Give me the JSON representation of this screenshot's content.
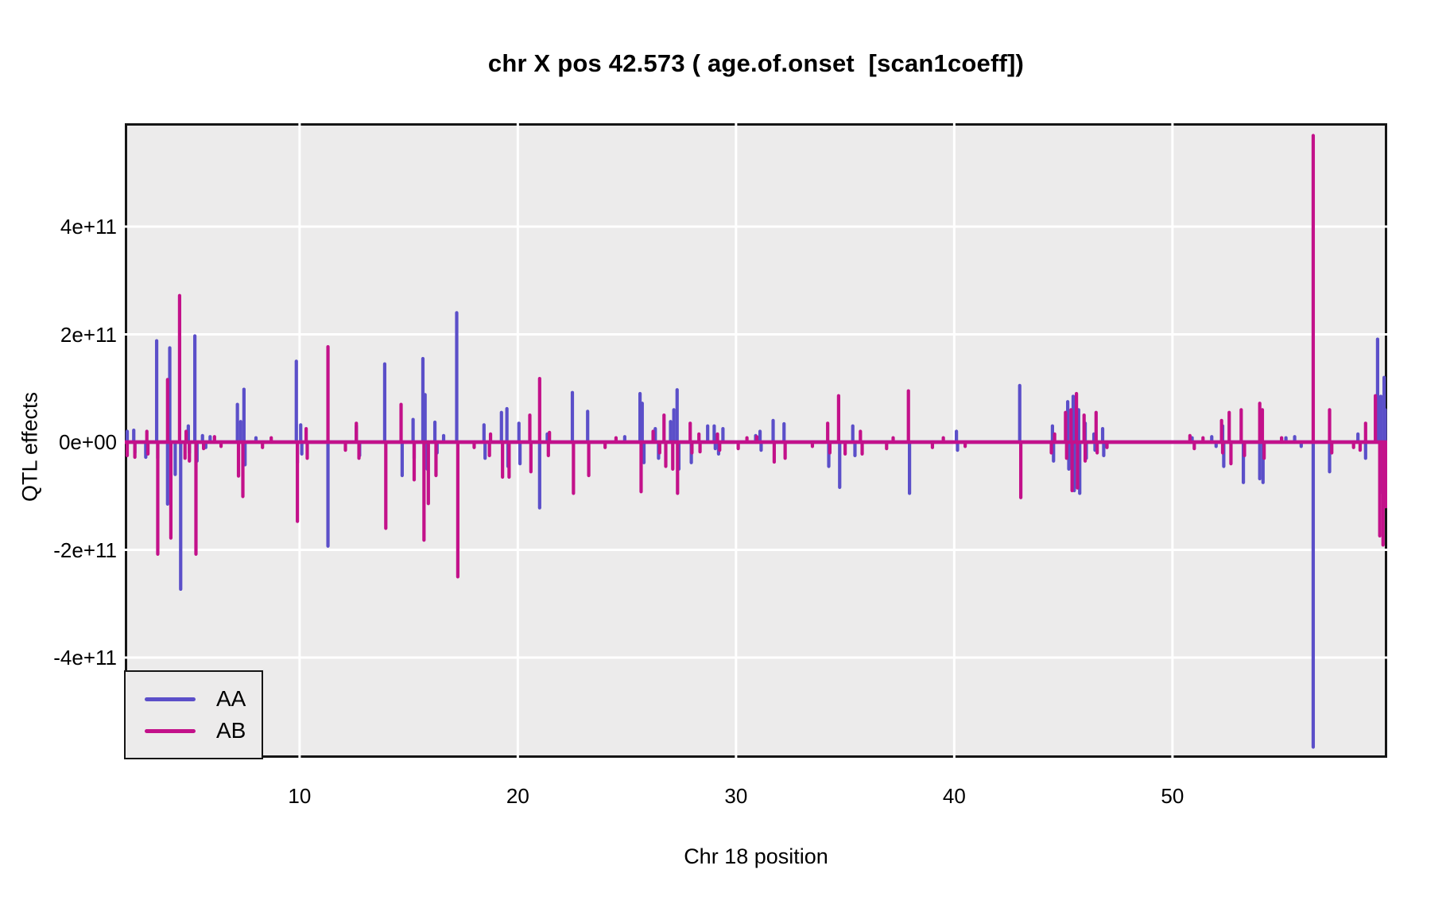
{
  "title": "chr X pos 42.573 ( age.of.onset  [scan1coeff])",
  "chart_data": {
    "type": "line",
    "title": "chr X pos 42.573 ( age.of.onset  [scan1coeff])",
    "xlabel": "Chr 18 position",
    "ylabel": "QTL effects",
    "x_ticks": {
      "values": [
        10,
        20,
        30,
        40,
        50
      ],
      "labels": [
        "10",
        "20",
        "30",
        "40",
        "50"
      ]
    },
    "y_ticks": {
      "values_e11": [
        4,
        2,
        0,
        -2,
        -4
      ],
      "labels": [
        "4e+11",
        "2e+11",
        "0e+00",
        "-2e+11",
        "-4e+11"
      ]
    },
    "xlim": [
      1.99,
      59.82
    ],
    "ylim": [
      -590000000000.0,
      590000000000.0
    ],
    "grid": "white major gridlines on gray panel, no tick marks",
    "panel_bg": "#ECEBEB",
    "gridline_color": "#FFFFFF",
    "border_color": "#151515",
    "baseline_value": 0,
    "units_note": "spike values below are in units of 1e11; each entry is [x_position, peak_value] of a narrow vertical spike rising/falling from the zero baseline",
    "legend": {
      "position": "bottom-left",
      "entries": [
        {
          "label": "AA",
          "color": "#5B4FC9"
        },
        {
          "label": "AB",
          "color": "#C3118A"
        }
      ]
    },
    "series": [
      {
        "name": "AA",
        "color": "#5B4FC9",
        "spikes_e11": [
          [
            2.1,
            0.2
          ],
          [
            2.4,
            0.22
          ],
          [
            2.45,
            -0.2
          ],
          [
            2.95,
            -0.28
          ],
          [
            3.45,
            1.88
          ],
          [
            3.5,
            -0.3
          ],
          [
            3.95,
            -1.15
          ],
          [
            4.05,
            1.75
          ],
          [
            4.3,
            -0.6
          ],
          [
            4.55,
            -2.73
          ],
          [
            4.9,
            0.3
          ],
          [
            4.95,
            -0.2
          ],
          [
            5.2,
            1.97
          ],
          [
            5.3,
            -0.35
          ],
          [
            5.55,
            0.12
          ],
          [
            5.7,
            -0.1
          ],
          [
            5.9,
            0.1
          ],
          [
            7.15,
            0.7
          ],
          [
            7.3,
            0.38
          ],
          [
            7.45,
            0.98
          ],
          [
            7.5,
            -0.42
          ],
          [
            8.0,
            0.08
          ],
          [
            9.85,
            1.5
          ],
          [
            9.9,
            -0.38
          ],
          [
            10.05,
            0.32
          ],
          [
            10.1,
            -0.22
          ],
          [
            11.3,
            -1.93
          ],
          [
            12.6,
            0.3
          ],
          [
            12.75,
            -0.25
          ],
          [
            13.9,
            1.45
          ],
          [
            14.7,
            -0.62
          ],
          [
            15.2,
            0.42
          ],
          [
            15.25,
            -0.3
          ],
          [
            15.65,
            1.55
          ],
          [
            15.75,
            0.88
          ],
          [
            15.85,
            -0.5
          ],
          [
            16.2,
            0.37
          ],
          [
            16.3,
            -0.2
          ],
          [
            16.6,
            0.12
          ],
          [
            17.2,
            2.4
          ],
          [
            18.45,
            0.32
          ],
          [
            18.5,
            -0.3
          ],
          [
            19.25,
            0.55
          ],
          [
            19.5,
            0.62
          ],
          [
            19.55,
            -0.45
          ],
          [
            20.05,
            0.35
          ],
          [
            20.1,
            -0.4
          ],
          [
            21.0,
            -1.22
          ],
          [
            21.35,
            0.15
          ],
          [
            22.5,
            0.92
          ],
          [
            23.2,
            0.57
          ],
          [
            24.9,
            0.1
          ],
          [
            25.6,
            0.9
          ],
          [
            25.7,
            0.72
          ],
          [
            25.78,
            -0.38
          ],
          [
            26.3,
            0.25
          ],
          [
            26.45,
            -0.3
          ],
          [
            27.0,
            0.38
          ],
          [
            27.15,
            0.6
          ],
          [
            27.3,
            0.97
          ],
          [
            27.38,
            -0.5
          ],
          [
            27.95,
            -0.38
          ],
          [
            28.7,
            0.3
          ],
          [
            29.0,
            0.3
          ],
          [
            29.05,
            -0.12
          ],
          [
            29.2,
            -0.22
          ],
          [
            29.4,
            0.25
          ],
          [
            30.9,
            0.12
          ],
          [
            31.1,
            0.2
          ],
          [
            31.15,
            -0.15
          ],
          [
            31.7,
            0.4
          ],
          [
            32.2,
            0.34
          ],
          [
            34.25,
            -0.45
          ],
          [
            34.75,
            -0.84
          ],
          [
            35.35,
            0.3
          ],
          [
            35.45,
            -0.25
          ],
          [
            37.95,
            -0.95
          ],
          [
            40.1,
            0.2
          ],
          [
            40.15,
            -0.15
          ],
          [
            43.0,
            1.05
          ],
          [
            44.5,
            0.3
          ],
          [
            44.55,
            -0.35
          ],
          [
            45.2,
            0.75
          ],
          [
            45.25,
            -0.5
          ],
          [
            45.45,
            0.85
          ],
          [
            45.5,
            -0.9
          ],
          [
            45.7,
            0.6
          ],
          [
            45.75,
            -0.95
          ],
          [
            46.0,
            0.35
          ],
          [
            46.05,
            -0.3
          ],
          [
            46.4,
            0.15
          ],
          [
            46.45,
            -0.15
          ],
          [
            46.8,
            0.25
          ],
          [
            46.85,
            -0.25
          ],
          [
            50.9,
            0.08
          ],
          [
            51.8,
            0.1
          ],
          [
            52.0,
            -0.08
          ],
          [
            52.3,
            0.3
          ],
          [
            52.35,
            -0.45
          ],
          [
            53.25,
            -0.75
          ],
          [
            54.0,
            -0.68
          ],
          [
            54.05,
            0.3
          ],
          [
            54.15,
            -0.75
          ],
          [
            55.2,
            0.08
          ],
          [
            55.6,
            0.1
          ],
          [
            55.9,
            -0.08
          ],
          [
            56.45,
            -5.66
          ],
          [
            57.2,
            -0.55
          ],
          [
            58.5,
            0.15
          ],
          [
            58.85,
            -0.3
          ],
          [
            59.4,
            1.91
          ],
          [
            59.55,
            0.85
          ],
          [
            59.6,
            -0.93
          ],
          [
            59.7,
            1.2
          ],
          [
            59.75,
            0.6
          ]
        ]
      },
      {
        "name": "AB",
        "color": "#C3118A",
        "spikes_e11": [
          [
            2.1,
            -0.25
          ],
          [
            2.45,
            -0.28
          ],
          [
            3.0,
            0.2
          ],
          [
            3.05,
            -0.22
          ],
          [
            3.5,
            -2.08
          ],
          [
            3.95,
            1.16
          ],
          [
            4.1,
            -1.78
          ],
          [
            4.5,
            2.72
          ],
          [
            4.75,
            -0.3
          ],
          [
            4.8,
            0.2
          ],
          [
            4.95,
            -0.35
          ],
          [
            5.25,
            -2.08
          ],
          [
            5.6,
            -0.12
          ],
          [
            6.1,
            0.1
          ],
          [
            6.4,
            -0.08
          ],
          [
            7.2,
            -0.63
          ],
          [
            7.4,
            -1.01
          ],
          [
            8.3,
            -0.1
          ],
          [
            8.7,
            0.08
          ],
          [
            9.9,
            -1.47
          ],
          [
            10.3,
            0.25
          ],
          [
            10.35,
            -0.3
          ],
          [
            11.3,
            1.77
          ],
          [
            12.1,
            -0.15
          ],
          [
            12.6,
            0.35
          ],
          [
            12.72,
            -0.3
          ],
          [
            13.95,
            -1.6
          ],
          [
            14.65,
            0.7
          ],
          [
            15.25,
            -0.7
          ],
          [
            15.7,
            -1.82
          ],
          [
            15.9,
            -1.14
          ],
          [
            16.25,
            -0.62
          ],
          [
            17.25,
            -2.5
          ],
          [
            18.0,
            -0.1
          ],
          [
            18.7,
            -0.25
          ],
          [
            18.75,
            0.15
          ],
          [
            19.3,
            -0.65
          ],
          [
            19.6,
            -0.65
          ],
          [
            20.55,
            0.5
          ],
          [
            20.6,
            -0.55
          ],
          [
            21.0,
            1.18
          ],
          [
            21.4,
            -0.25
          ],
          [
            21.45,
            0.18
          ],
          [
            22.55,
            -0.95
          ],
          [
            23.25,
            -0.62
          ],
          [
            24.0,
            -0.1
          ],
          [
            24.5,
            0.08
          ],
          [
            25.65,
            -0.92
          ],
          [
            26.2,
            0.2
          ],
          [
            26.5,
            -0.2
          ],
          [
            26.7,
            0.5
          ],
          [
            26.78,
            -0.45
          ],
          [
            27.1,
            -0.5
          ],
          [
            27.32,
            -0.95
          ],
          [
            27.9,
            0.35
          ],
          [
            27.98,
            -0.2
          ],
          [
            28.3,
            0.15
          ],
          [
            28.35,
            -0.18
          ],
          [
            29.15,
            0.15
          ],
          [
            29.25,
            -0.15
          ],
          [
            30.1,
            -0.12
          ],
          [
            30.5,
            0.08
          ],
          [
            30.95,
            0.1
          ],
          [
            31.75,
            -0.37
          ],
          [
            32.25,
            -0.3
          ],
          [
            33.5,
            -0.08
          ],
          [
            34.2,
            0.35
          ],
          [
            34.3,
            -0.2
          ],
          [
            34.7,
            0.86
          ],
          [
            35.0,
            -0.22
          ],
          [
            35.7,
            0.2
          ],
          [
            35.78,
            -0.22
          ],
          [
            36.9,
            -0.12
          ],
          [
            37.2,
            0.08
          ],
          [
            37.9,
            0.95
          ],
          [
            39.0,
            -0.1
          ],
          [
            39.5,
            0.08
          ],
          [
            40.5,
            -0.08
          ],
          [
            43.05,
            -1.03
          ],
          [
            44.45,
            -0.2
          ],
          [
            44.6,
            0.15
          ],
          [
            45.1,
            0.55
          ],
          [
            45.15,
            -0.3
          ],
          [
            45.35,
            0.6
          ],
          [
            45.4,
            -0.9
          ],
          [
            45.6,
            0.9
          ],
          [
            45.65,
            -0.85
          ],
          [
            45.95,
            0.5
          ],
          [
            46.0,
            -0.35
          ],
          [
            46.5,
            0.55
          ],
          [
            46.55,
            -0.2
          ],
          [
            47.0,
            -0.1
          ],
          [
            50.8,
            0.12
          ],
          [
            51.0,
            -0.12
          ],
          [
            51.4,
            0.08
          ],
          [
            52.25,
            0.4
          ],
          [
            52.3,
            -0.2
          ],
          [
            52.6,
            0.55
          ],
          [
            52.68,
            -0.4
          ],
          [
            53.15,
            0.6
          ],
          [
            53.3,
            -0.25
          ],
          [
            54.0,
            0.72
          ],
          [
            54.12,
            0.6
          ],
          [
            54.2,
            -0.3
          ],
          [
            55.0,
            0.08
          ],
          [
            56.45,
            5.69
          ],
          [
            57.2,
            0.6
          ],
          [
            57.3,
            -0.2
          ],
          [
            58.3,
            -0.1
          ],
          [
            58.6,
            -0.15
          ],
          [
            58.85,
            0.35
          ],
          [
            59.3,
            0.86
          ],
          [
            59.5,
            -1.74
          ],
          [
            59.65,
            -1.91
          ],
          [
            59.78,
            -1.2
          ]
        ]
      }
    ]
  }
}
